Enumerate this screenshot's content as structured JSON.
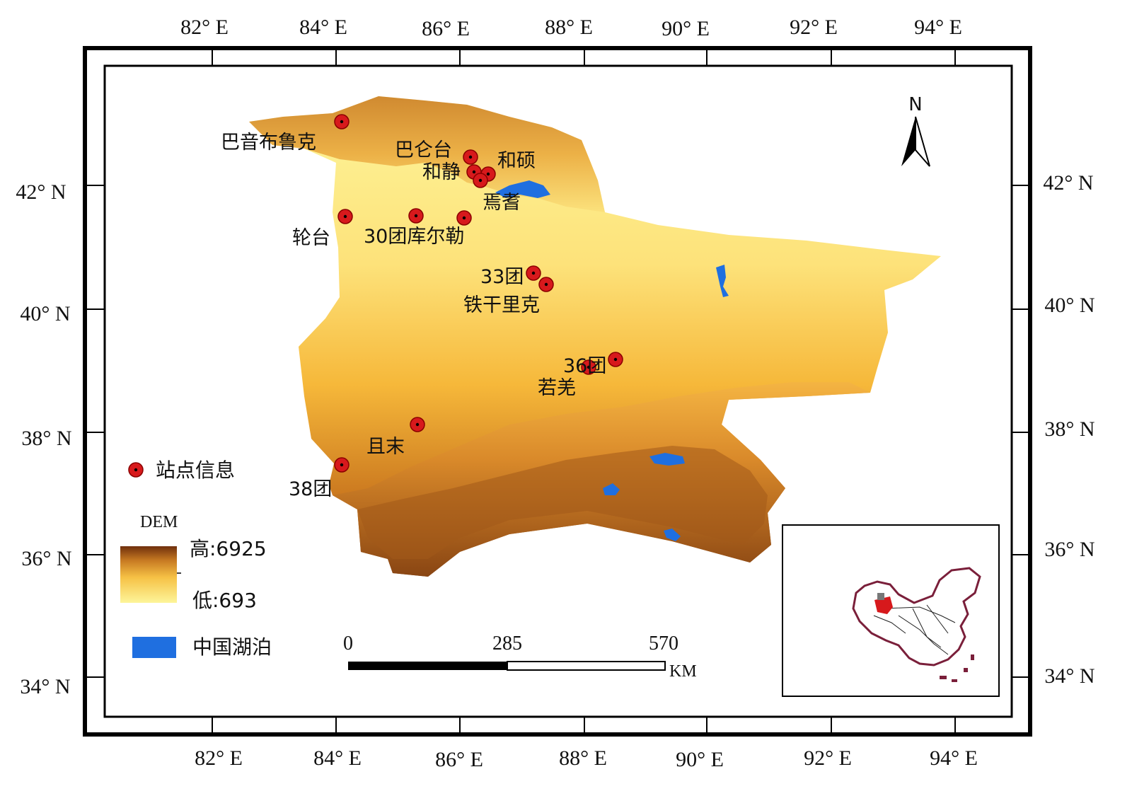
{
  "axes": {
    "lon_labels": [
      "82° E",
      "84° E",
      "86° E",
      "88° E",
      "90° E",
      "92° E",
      "94° E"
    ],
    "lat_labels": [
      "42° N",
      "40° N",
      "38° N",
      "36° N",
      "34° N"
    ]
  },
  "north_arrow": {
    "label": "N",
    "icon": "north-arrow-icon"
  },
  "stations": [
    {
      "name": "巴音布鲁克"
    },
    {
      "name": "巴仑台"
    },
    {
      "name": "和静"
    },
    {
      "name": "和硕"
    },
    {
      "name": "焉耆"
    },
    {
      "name": "轮台"
    },
    {
      "name": "30团库尔勒"
    },
    {
      "name": "33团"
    },
    {
      "name": "铁干里克"
    },
    {
      "name": "36团"
    },
    {
      "name": "若羌"
    },
    {
      "name": "且末"
    },
    {
      "name": "38团"
    }
  ],
  "legend": {
    "station_label": "站点信息",
    "dem_title": "DEM",
    "dem_high": "高:6925",
    "dem_low": "低:693",
    "lake_label": "中国湖泊"
  },
  "scale_bar": {
    "ticks": [
      "0",
      "285",
      "570"
    ],
    "unit": "KM"
  },
  "colors": {
    "station": "#d7191c",
    "lake": "#1f6fe0",
    "dem_low": "#fdf59a",
    "dem_mid": "#f6b83a",
    "dem_high": "#7a3a10"
  }
}
